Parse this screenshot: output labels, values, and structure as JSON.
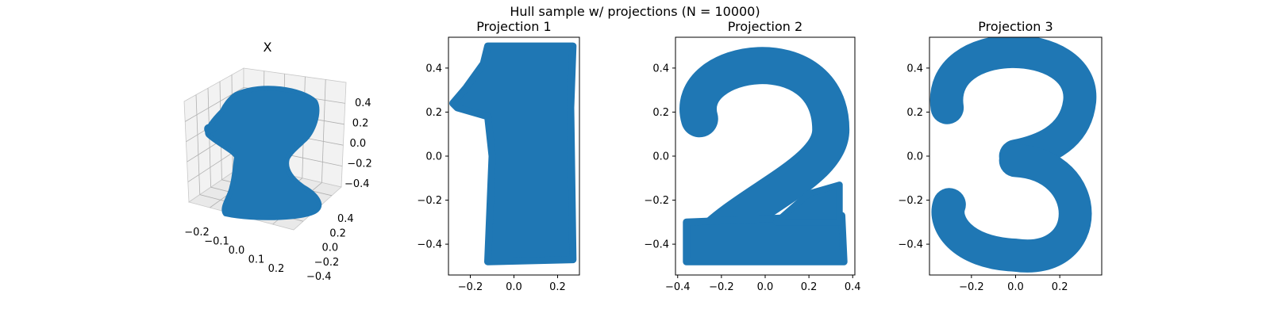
{
  "figure": {
    "suptitle": "Hull sample w/ projections (N = 10000)"
  },
  "chart_data": [
    {
      "type": "scatter",
      "projection": "3d",
      "title": "X",
      "marker_color": "#1f77b4",
      "xticks": [
        "−0.2",
        "−0.1",
        "0.0",
        "0.1",
        "0.2"
      ],
      "yticks": [
        "0.4",
        "0.2",
        "0.0",
        "−0.2",
        "−0.4"
      ],
      "zticks": [
        "0.4",
        "0.2",
        "0.0",
        "−0.2",
        "−0.4"
      ],
      "xlim": [
        -0.28,
        0.28
      ],
      "ylim": [
        -0.5,
        0.5
      ],
      "zlim": [
        -0.5,
        0.5
      ],
      "grid": true
    },
    {
      "type": "scatter",
      "title": "Projection 1",
      "marker_color": "#1f77b4",
      "shape": "digit 1",
      "xlim": [
        -0.3,
        0.3
      ],
      "ylim": [
        -0.54,
        0.54
      ],
      "xticks": [
        {
          "value": -0.2,
          "label": "−0.2"
        },
        {
          "value": 0.0,
          "label": "0.0"
        },
        {
          "value": 0.2,
          "label": "0.2"
        }
      ],
      "yticks": [
        {
          "value": 0.4,
          "label": "0.4"
        },
        {
          "value": 0.2,
          "label": "0.2"
        },
        {
          "value": 0.0,
          "label": "0.0"
        },
        {
          "value": -0.2,
          "label": "−0.2"
        },
        {
          "value": -0.4,
          "label": "−0.4"
        }
      ]
    },
    {
      "type": "scatter",
      "title": "Projection 2",
      "marker_color": "#1f77b4",
      "shape": "digit 2",
      "xlim": [
        -0.41,
        0.41
      ],
      "ylim": [
        -0.54,
        0.54
      ],
      "xticks": [
        {
          "value": -0.4,
          "label": "−0.4"
        },
        {
          "value": -0.2,
          "label": "−0.2"
        },
        {
          "value": 0.0,
          "label": "0.0"
        },
        {
          "value": 0.2,
          "label": "0.2"
        },
        {
          "value": 0.4,
          "label": "0.4"
        }
      ],
      "yticks": [
        {
          "value": 0.4,
          "label": "0.4"
        },
        {
          "value": 0.2,
          "label": "0.2"
        },
        {
          "value": 0.0,
          "label": "0.0"
        },
        {
          "value": -0.2,
          "label": "−0.2"
        },
        {
          "value": -0.4,
          "label": "−0.4"
        }
      ]
    },
    {
      "type": "scatter",
      "title": "Projection 3",
      "marker_color": "#1f77b4",
      "shape": "digit 3",
      "xlim": [
        -0.39,
        0.39
      ],
      "ylim": [
        -0.54,
        0.54
      ],
      "xticks": [
        {
          "value": -0.2,
          "label": "−0.2"
        },
        {
          "value": 0.0,
          "label": "0.0"
        },
        {
          "value": 0.2,
          "label": "0.2"
        }
      ],
      "yticks": [
        {
          "value": 0.4,
          "label": "0.4"
        },
        {
          "value": 0.2,
          "label": "0.2"
        },
        {
          "value": 0.0,
          "label": "0.0"
        },
        {
          "value": -0.2,
          "label": "−0.2"
        },
        {
          "value": -0.4,
          "label": "−0.4"
        }
      ]
    }
  ]
}
